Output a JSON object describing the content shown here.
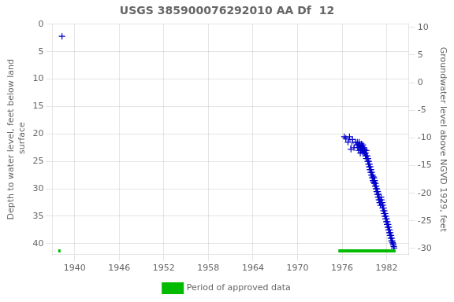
{
  "chart_data": {
    "type": "line",
    "title": "USGS 385900076292010 AA Df  12",
    "ylabel": "Depth to water level, feet below land\n surface",
    "y2label": "Groundwater level above NGVD 1929, feet",
    "xlim": [
      1937,
      1985
    ],
    "xticks": [
      1940,
      1946,
      1952,
      1958,
      1964,
      1970,
      1976,
      1982
    ],
    "ylim": [
      42,
      0
    ],
    "yticks": [
      0,
      5,
      10,
      15,
      20,
      25,
      30,
      35,
      40
    ],
    "y2lim": [
      -31.11,
      10.56
    ],
    "y2ticks": [
      10,
      5,
      0,
      -5,
      -10,
      -15,
      -20,
      -25,
      -30
    ],
    "grid": true,
    "legend": "bottom",
    "series": [
      {
        "color": "#0000cc",
        "marker": "plus",
        "line_style": "dashed",
        "x": [
          1976.3,
          1976.5,
          1976.8,
          1977.0,
          1977.2,
          1977.4,
          1977.6,
          1977.8,
          1978.0,
          1978.05,
          1978.1,
          1978.15,
          1978.2,
          1978.25,
          1978.3,
          1978.35,
          1978.4,
          1978.45,
          1978.5,
          1978.55,
          1978.6,
          1978.65,
          1978.7,
          1978.75,
          1978.8,
          1978.85,
          1978.9,
          1978.95,
          1979.0,
          1979.05,
          1979.1,
          1979.15,
          1979.2,
          1979.25,
          1979.3,
          1979.35,
          1979.4,
          1979.45,
          1979.5,
          1979.55,
          1979.6,
          1979.65,
          1979.7,
          1979.75,
          1979.8,
          1979.85,
          1979.9,
          1979.95,
          1980.0,
          1980.05,
          1980.1,
          1980.15,
          1980.2,
          1980.25,
          1980.3,
          1980.35,
          1980.4,
          1980.45,
          1980.5,
          1980.55,
          1980.6,
          1980.65,
          1980.7,
          1980.75,
          1980.8,
          1980.85,
          1980.9,
          1980.95,
          1981.0,
          1981.05,
          1981.1,
          1981.15,
          1981.2,
          1981.25,
          1981.3,
          1981.35,
          1981.4,
          1981.45,
          1981.5,
          1981.55,
          1981.6,
          1981.65,
          1981.7,
          1981.75,
          1981.8,
          1981.85,
          1981.9,
          1981.95,
          1982.0,
          1982.05,
          1982.1,
          1982.15,
          1982.2,
          1982.25,
          1982.3,
          1982.35,
          1982.4,
          1982.45,
          1982.5,
          1982.55,
          1982.6,
          1982.65,
          1982.7,
          1982.75,
          1982.8,
          1982.85,
          1982.9,
          1982.95,
          1983.0
        ],
        "values": [
          20.5,
          20.8,
          21.5,
          20.5,
          22.8,
          21.0,
          22.5,
          21.5,
          22.0,
          21.5,
          22.5,
          22.0,
          23.0,
          22.0,
          21.5,
          22.5,
          22.0,
          23.5,
          22.5,
          23.0,
          21.8,
          22.8,
          22.3,
          23.3,
          22.0,
          23.0,
          22.5,
          23.5,
          22.8,
          23.5,
          23.0,
          24.0,
          23.5,
          24.5,
          23.0,
          24.0,
          24.0,
          25.0,
          24.5,
          25.5,
          25.0,
          26.0,
          25.5,
          26.5,
          26.0,
          27.0,
          26.5,
          27.5,
          27.0,
          28.0,
          27.5,
          28.5,
          27.8,
          28.8,
          28.0,
          29.0,
          28.5,
          29.5,
          29.0,
          30.0,
          29.5,
          30.5,
          30.0,
          31.0,
          30.5,
          31.5,
          31.0,
          32.0,
          31.5,
          32.5,
          32.0,
          33.0,
          32.5,
          31.5,
          32.0,
          33.0,
          32.5,
          33.5,
          33.0,
          34.0,
          33.5,
          34.5,
          34.0,
          35.0,
          34.5,
          35.5,
          35.0,
          36.0,
          35.5,
          36.5,
          36.0,
          37.0,
          36.5,
          37.5,
          37.0,
          38.0,
          37.5,
          38.5,
          38.0,
          39.0,
          38.5,
          39.5,
          39.0,
          39.5,
          39.8,
          40.0,
          40.2,
          40.5,
          40.8
        ]
      },
      {
        "color": "#0000cc",
        "marker": "plus",
        "line_style": "none",
        "x": [
          1938.3
        ],
        "values": [
          2.2
        ]
      }
    ],
    "periods": {
      "name": "Period of approved data",
      "color": "#00bb00",
      "y": 41.3,
      "ranges": [
        [
          1975.5,
          1983.2
        ],
        [
          1937.8,
          1938.1
        ]
      ]
    }
  }
}
